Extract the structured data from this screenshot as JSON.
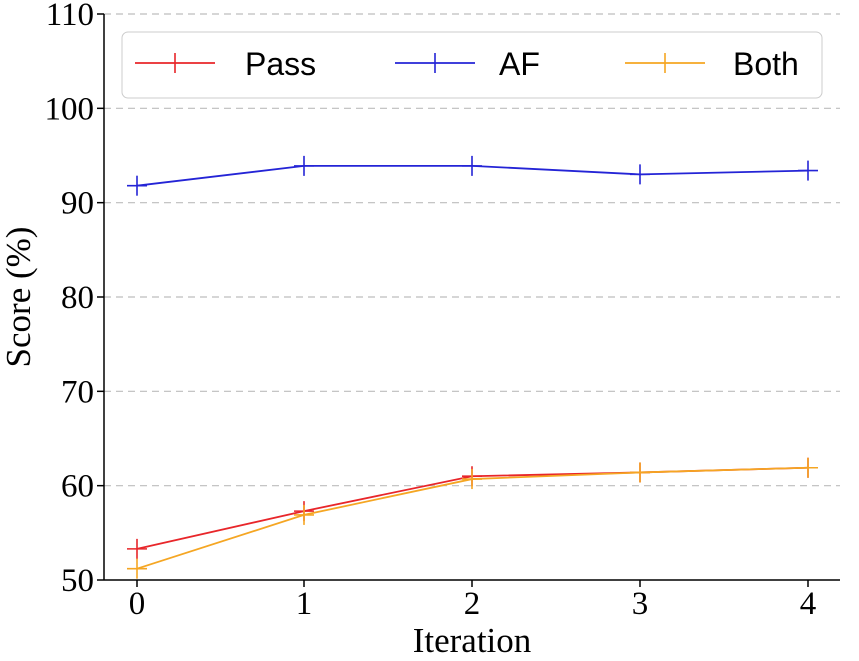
{
  "chart_data": {
    "type": "line",
    "title": "",
    "xlabel": "Iteration",
    "ylabel": "Score (%)",
    "x": [
      0,
      1,
      2,
      3,
      4
    ],
    "xticks": [
      "0",
      "1",
      "2",
      "3",
      "4"
    ],
    "yticks": [
      "50",
      "60",
      "70",
      "80",
      "90",
      "100",
      "110"
    ],
    "ylim": [
      50,
      110
    ],
    "grid": "horizontal-dashed",
    "legend_position": "top",
    "series": [
      {
        "name": "Pass",
        "color": "#e8262a",
        "values": [
          53.3,
          57.3,
          61.0,
          61.4,
          61.9
        ]
      },
      {
        "name": "AF",
        "color": "#2424d6",
        "values": [
          91.8,
          93.9,
          93.9,
          93.0,
          93.4
        ]
      },
      {
        "name": "Both",
        "color": "#f5a623",
        "values": [
          51.2,
          56.9,
          60.7,
          61.4,
          61.9
        ]
      }
    ]
  }
}
